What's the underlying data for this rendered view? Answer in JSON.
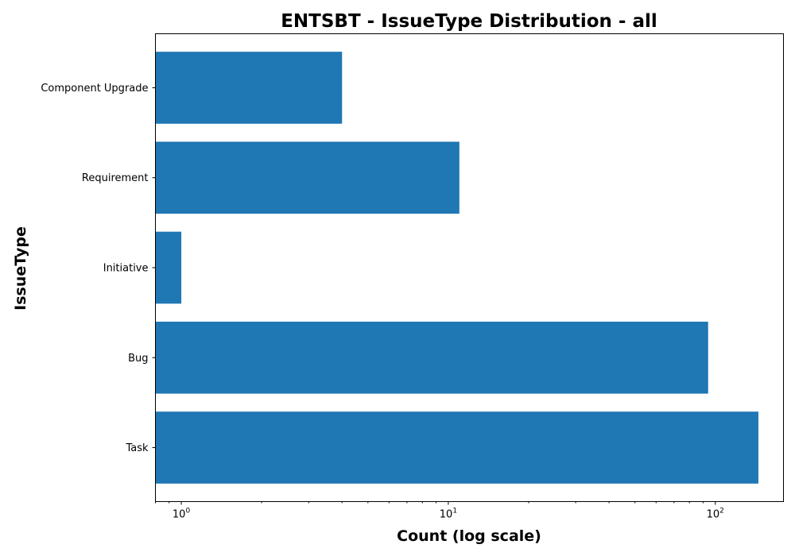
{
  "chart_data": {
    "type": "bar",
    "orientation": "horizontal",
    "title": "ENTSBT - IssueType Distribution - all",
    "xlabel": "Count (log scale)",
    "ylabel": "IssueType",
    "x_scale": "log",
    "xlim": [
      0.8,
      180
    ],
    "x_ticks": [
      {
        "value": 1,
        "base": "10",
        "exp": "0"
      },
      {
        "value": 10,
        "base": "10",
        "exp": "1"
      },
      {
        "value": 100,
        "base": "10",
        "exp": "2"
      }
    ],
    "categories": [
      "Component Upgrade",
      "Requirement",
      "Initiative",
      "Bug",
      "Task"
    ],
    "values": [
      4,
      11,
      1,
      94,
      145
    ],
    "bar_color": "#1f77b4",
    "grid": false,
    "legend": "none"
  }
}
